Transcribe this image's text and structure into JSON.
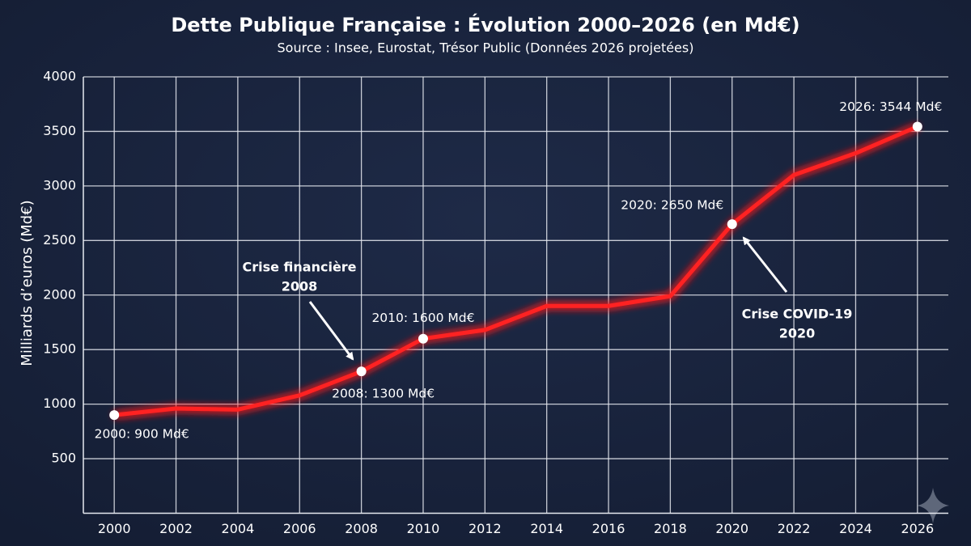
{
  "chart_data": {
    "type": "line",
    "title": "Dette Publique Française : Évolution 2000–2026 (en Md€)",
    "subtitle": "Source : Insee, Eurostat, Trésor Public (Données 2026 projetées)",
    "y_label": "Milliards d’euros (Md€)",
    "x": [
      2000,
      2002,
      2004,
      2006,
      2008,
      2010,
      2012,
      2014,
      2016,
      2018,
      2020,
      2022,
      2024,
      2026
    ],
    "series": [
      {
        "name": "Dette publique",
        "color": "#ff2424",
        "values": [
          900,
          960,
          950,
          1080,
          1300,
          1600,
          1680,
          1900,
          1900,
          1990,
          2650,
          3100,
          3300,
          3544
        ],
        "value_labels": [
          "2000: 900 Md€",
          null,
          null,
          null,
          "2008: 1300 Md€",
          "2010: 1600 Md€",
          null,
          null,
          null,
          null,
          "2020: 2650 Md€",
          null,
          null,
          "2026: 3544 Md€"
        ]
      }
    ],
    "annotations": [
      {
        "lines": [
          "Crise financière",
          "2008"
        ]
      },
      {
        "lines": [
          "Crise COVID-19",
          "2020"
        ]
      }
    ],
    "xlim": [
      1999,
      2027
    ],
    "xticks": [
      2000,
      2002,
      2004,
      2006,
      2008,
      2010,
      2012,
      2014,
      2016,
      2018,
      2020,
      2022,
      2024,
      2026
    ],
    "ylim": [
      0,
      4000
    ],
    "yticks": [
      500,
      1000,
      1500,
      2000,
      2500,
      3000,
      3500,
      4000
    ],
    "grid": true
  }
}
